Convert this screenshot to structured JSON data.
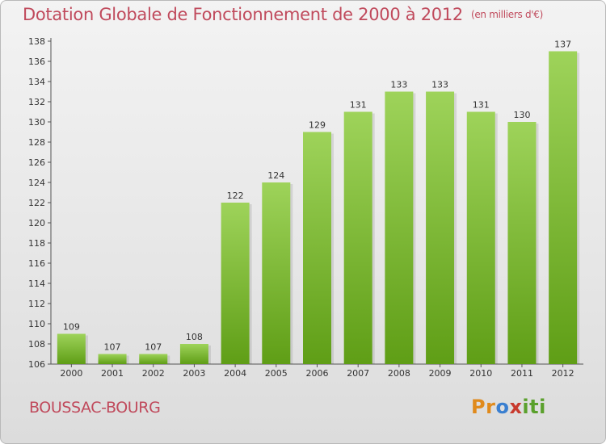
{
  "header": {
    "title": "Dotation Globale de Fonctionnement de 2000 à 2012",
    "unit": "(en milliers d'€)"
  },
  "footer": {
    "commune": "BOUSSAC-BOURG",
    "logo_letters": [
      "P",
      "r",
      "o",
      "x",
      "i",
      "t",
      "i"
    ],
    "logo_colors": [
      "#e08a1c",
      "#e08a1c",
      "#3a7fd0",
      "#c83a2e",
      "#5aa02c",
      "#5aa02c",
      "#5aa02c"
    ]
  },
  "colors": {
    "bar_light": "#9ed35a",
    "bar_dark": "#5f9e16",
    "title": "#c04a5c"
  },
  "chart_data": {
    "type": "bar",
    "categories": [
      "2000",
      "2001",
      "2002",
      "2003",
      "2004",
      "2005",
      "2006",
      "2007",
      "2008",
      "2009",
      "2010",
      "2011",
      "2012"
    ],
    "values": [
      109,
      107,
      107,
      108,
      122,
      124,
      129,
      131,
      133,
      133,
      131,
      130,
      137
    ],
    "ylim": [
      106,
      138
    ],
    "yticks": [
      106,
      108,
      110,
      112,
      114,
      116,
      118,
      120,
      122,
      124,
      126,
      128,
      130,
      132,
      134,
      136,
      138
    ],
    "grid": false,
    "data_labels": true
  }
}
